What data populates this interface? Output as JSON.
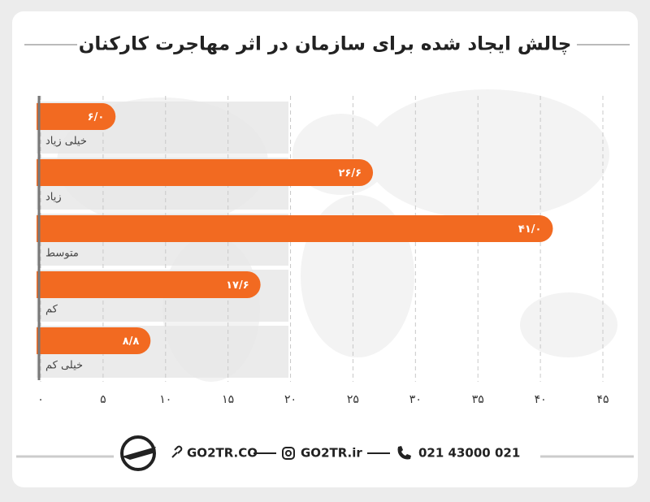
{
  "chart_data": {
    "type": "bar",
    "title": "چالش ایجاد شده برای سازمان در اثر مهاجرت کارکنان",
    "categories": [
      "خیلی زیاد",
      "زیاد",
      "متوسط",
      "کم",
      "خیلی کم"
    ],
    "values": [
      6.0,
      26.6,
      41.0,
      17.6,
      8.8
    ],
    "value_labels": [
      "۶/۰",
      "۲۶/۶",
      "۴۱/۰",
      "۱۷/۶",
      "۸/۸"
    ],
    "color": "#f26a21",
    "xlim": [
      0,
      45
    ],
    "xticks": [
      {
        "value": 0,
        "label": "۰"
      },
      {
        "value": 5,
        "label": "۵"
      },
      {
        "value": 10,
        "label": "۱۰"
      },
      {
        "value": 15,
        "label": "۱۵"
      },
      {
        "value": 20,
        "label": "۲۰"
      },
      {
        "value": 25,
        "label": "۲۵"
      },
      {
        "value": 30,
        "label": "۳۰"
      },
      {
        "value": 35,
        "label": "۳۵"
      },
      {
        "value": 40,
        "label": "۴۰"
      },
      {
        "value": 45,
        "label": "۴۵"
      }
    ],
    "grid": true
  },
  "footer": {
    "website": "GO2TR.CO",
    "instagram": "GO2TR.ir",
    "phone": "021 43000 021"
  }
}
